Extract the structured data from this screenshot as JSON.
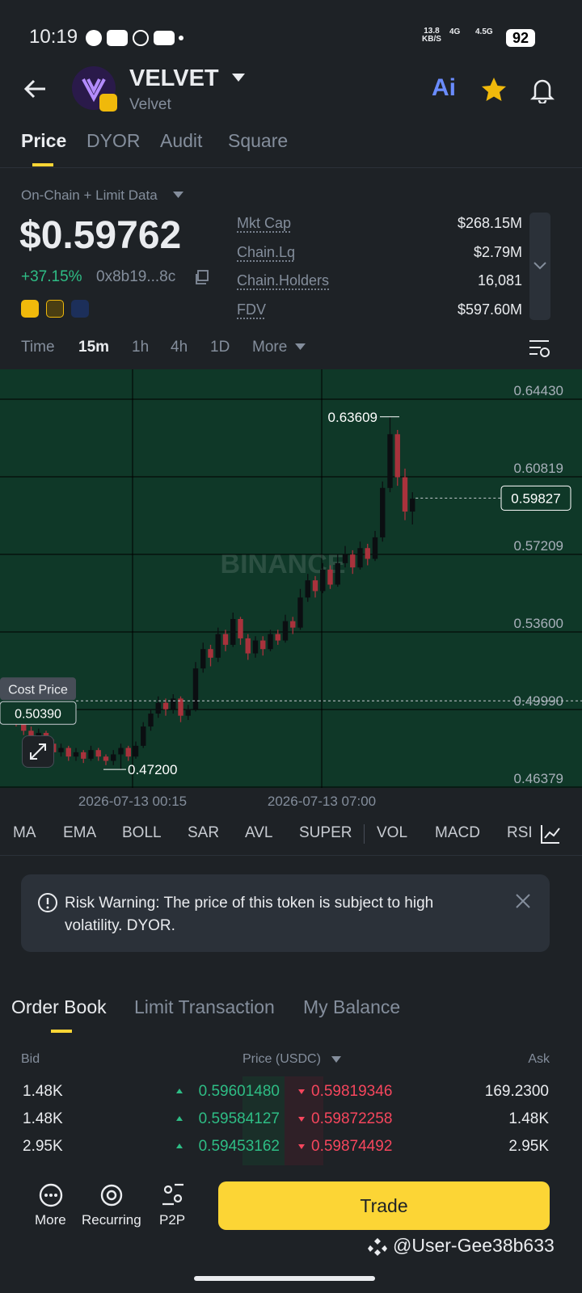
{
  "status_bar": {
    "time": "10:19",
    "speed": "13.8",
    "speed_unit": "KB/S",
    "net1": "4G",
    "net2": "4.5G",
    "battery": "92"
  },
  "header": {
    "name": "VELVET",
    "subtitle": "Velvet",
    "ai": "Ai"
  },
  "tabs": [
    "Price",
    "DYOR",
    "Audit",
    "Square"
  ],
  "data_source": "On-Chain + Limit Data",
  "price": "$0.59762",
  "change": "+37.15%",
  "address": "0x8b19...8c",
  "stats": [
    {
      "label": "Mkt Cap",
      "value": "$268.15M"
    },
    {
      "label": "Chain.Lq",
      "value": "$2.79M"
    },
    {
      "label": "Chain.Holders",
      "value": "16,081"
    },
    {
      "label": "FDV",
      "value": "$597.60M"
    }
  ],
  "intervals": [
    "Time",
    "15m",
    "1h",
    "4h",
    "1D",
    "More"
  ],
  "price_chart": {
    "watermark": "BINANCE",
    "ylim": [
      0.4634,
      0.6582
    ],
    "yticks": [
      {
        "value": 0.6443,
        "label": "0.64430"
      },
      0.60819,
      0.57209,
      {
        "value": 0.536,
        "label": "0.53600"
      },
      {
        "value": 0.4999,
        "label": "0.49990"
      },
      0.46379
    ],
    "xlabels": [
      "2026-07-13 00:15",
      "2026-07-13 07:00"
    ],
    "high_label": 0.63609,
    "low_label": {
      "value": 0.472,
      "label": "0.47200"
    },
    "current_price": 0.59827,
    "cost_price_title": "Cost Price",
    "cost_price": {
      "value": 0.5039,
      "label": "0.50390"
    },
    "candles": [
      {
        "o": 0.498,
        "h": 0.501,
        "l": 0.492,
        "c": 0.494
      },
      {
        "o": 0.494,
        "h": 0.496,
        "l": 0.488,
        "c": 0.49
      },
      {
        "o": 0.49,
        "h": 0.492,
        "l": 0.485,
        "c": 0.487
      },
      {
        "o": 0.487,
        "h": 0.491,
        "l": 0.485,
        "c": 0.489
      },
      {
        "o": 0.489,
        "h": 0.49,
        "l": 0.482,
        "c": 0.484
      },
      {
        "o": 0.484,
        "h": 0.486,
        "l": 0.478,
        "c": 0.48
      },
      {
        "o": 0.48,
        "h": 0.484,
        "l": 0.478,
        "c": 0.482
      },
      {
        "o": 0.482,
        "h": 0.483,
        "l": 0.476,
        "c": 0.478
      },
      {
        "o": 0.478,
        "h": 0.482,
        "l": 0.476,
        "c": 0.48
      },
      {
        "o": 0.48,
        "h": 0.481,
        "l": 0.475,
        "c": 0.477
      },
      {
        "o": 0.477,
        "h": 0.483,
        "l": 0.476,
        "c": 0.481
      },
      {
        "o": 0.481,
        "h": 0.482,
        "l": 0.476,
        "c": 0.478
      },
      {
        "o": 0.478,
        "h": 0.479,
        "l": 0.474,
        "c": 0.476
      },
      {
        "o": 0.476,
        "h": 0.481,
        "l": 0.474,
        "c": 0.479
      },
      {
        "o": 0.479,
        "h": 0.484,
        "l": 0.472,
        "c": 0.482
      },
      {
        "o": 0.482,
        "h": 0.483,
        "l": 0.476,
        "c": 0.478
      },
      {
        "o": 0.478,
        "h": 0.485,
        "l": 0.477,
        "c": 0.483
      },
      {
        "o": 0.483,
        "h": 0.494,
        "l": 0.482,
        "c": 0.492
      },
      {
        "o": 0.492,
        "h": 0.5,
        "l": 0.49,
        "c": 0.498
      },
      {
        "o": 0.498,
        "h": 0.506,
        "l": 0.496,
        "c": 0.503
      },
      {
        "o": 0.503,
        "h": 0.505,
        "l": 0.497,
        "c": 0.5
      },
      {
        "o": 0.5,
        "h": 0.507,
        "l": 0.498,
        "c": 0.505
      },
      {
        "o": 0.505,
        "h": 0.506,
        "l": 0.494,
        "c": 0.497
      },
      {
        "o": 0.497,
        "h": 0.502,
        "l": 0.495,
        "c": 0.5
      },
      {
        "o": 0.5,
        "h": 0.522,
        "l": 0.499,
        "c": 0.519
      },
      {
        "o": 0.519,
        "h": 0.531,
        "l": 0.517,
        "c": 0.528
      },
      {
        "o": 0.528,
        "h": 0.53,
        "l": 0.52,
        "c": 0.524
      },
      {
        "o": 0.524,
        "h": 0.538,
        "l": 0.522,
        "c": 0.535
      },
      {
        "o": 0.535,
        "h": 0.537,
        "l": 0.527,
        "c": 0.53
      },
      {
        "o": 0.53,
        "h": 0.545,
        "l": 0.529,
        "c": 0.542
      },
      {
        "o": 0.542,
        "h": 0.543,
        "l": 0.53,
        "c": 0.533
      },
      {
        "o": 0.533,
        "h": 0.535,
        "l": 0.523,
        "c": 0.526
      },
      {
        "o": 0.526,
        "h": 0.534,
        "l": 0.524,
        "c": 0.532
      },
      {
        "o": 0.532,
        "h": 0.534,
        "l": 0.525,
        "c": 0.528
      },
      {
        "o": 0.528,
        "h": 0.537,
        "l": 0.527,
        "c": 0.535
      },
      {
        "o": 0.535,
        "h": 0.537,
        "l": 0.53,
        "c": 0.532
      },
      {
        "o": 0.532,
        "h": 0.544,
        "l": 0.531,
        "c": 0.541
      },
      {
        "o": 0.541,
        "h": 0.543,
        "l": 0.535,
        "c": 0.538
      },
      {
        "o": 0.538,
        "h": 0.556,
        "l": 0.537,
        "c": 0.552
      },
      {
        "o": 0.552,
        "h": 0.563,
        "l": 0.55,
        "c": 0.56
      },
      {
        "o": 0.56,
        "h": 0.562,
        "l": 0.552,
        "c": 0.555
      },
      {
        "o": 0.555,
        "h": 0.568,
        "l": 0.554,
        "c": 0.565
      },
      {
        "o": 0.565,
        "h": 0.567,
        "l": 0.556,
        "c": 0.558
      },
      {
        "o": 0.558,
        "h": 0.572,
        "l": 0.557,
        "c": 0.568
      },
      {
        "o": 0.568,
        "h": 0.576,
        "l": 0.566,
        "c": 0.572
      },
      {
        "o": 0.572,
        "h": 0.574,
        "l": 0.563,
        "c": 0.566
      },
      {
        "o": 0.566,
        "h": 0.578,
        "l": 0.565,
        "c": 0.575
      },
      {
        "o": 0.575,
        "h": 0.577,
        "l": 0.567,
        "c": 0.57
      },
      {
        "o": 0.57,
        "h": 0.583,
        "l": 0.569,
        "c": 0.58
      },
      {
        "o": 0.58,
        "h": 0.606,
        "l": 0.578,
        "c": 0.603
      },
      {
        "o": 0.603,
        "h": 0.63609,
        "l": 0.601,
        "c": 0.628
      },
      {
        "o": 0.628,
        "h": 0.63,
        "l": 0.604,
        "c": 0.608
      },
      {
        "o": 0.608,
        "h": 0.612,
        "l": 0.588,
        "c": 0.592
      },
      {
        "o": 0.592,
        "h": 0.601,
        "l": 0.586,
        "c": 0.598
      }
    ]
  },
  "indicators": [
    "MA",
    "EMA",
    "BOLL",
    "SAR",
    "AVL",
    "SUPER",
    "VOL",
    "MACD",
    "RSI"
  ],
  "risk_warning": "Risk Warning: The price of this token is subject to high volatility. DYOR.",
  "book_tabs": [
    "Order Book",
    "Limit Transaction",
    "My Balance"
  ],
  "book_headers": [
    "Bid",
    "Price (USDC)",
    "Ask"
  ],
  "book_rows": [
    [
      "1.48K",
      "0.59601480",
      "0.59819346",
      "169.2300"
    ],
    [
      "1.48K",
      "0.59584127",
      "0.59872258",
      "1.48K"
    ],
    [
      "2.95K",
      "0.59453162",
      "0.59874492",
      "2.95K"
    ]
  ],
  "bottom_nav": [
    "More",
    "Recurring",
    "P2P"
  ],
  "trade": "Trade",
  "watermark_user": "@User-Gee38b633"
}
